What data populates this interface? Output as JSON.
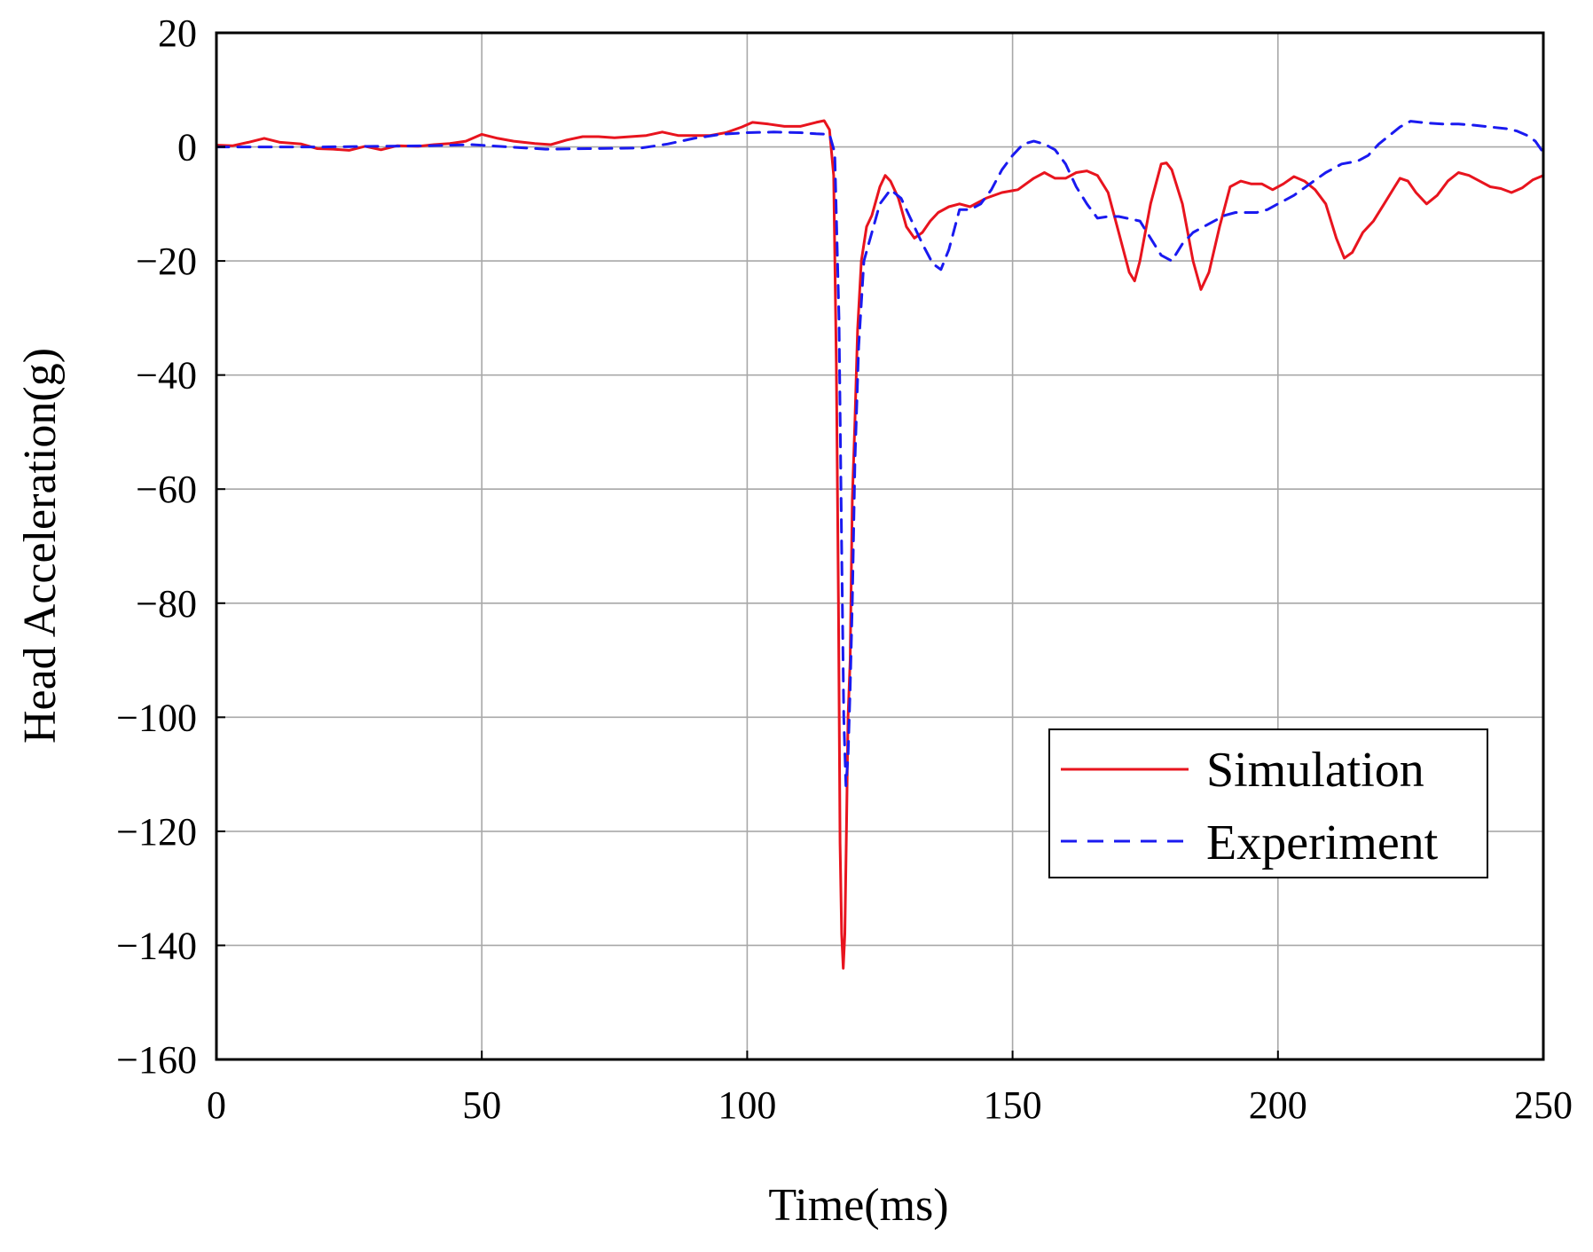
{
  "chart_data": {
    "type": "line",
    "title": "",
    "xlabel": "Time(ms)",
    "ylabel": "Head Acceleration(g)",
    "xlim": [
      0,
      250
    ],
    "ylim": [
      -160,
      20
    ],
    "xticks": [
      0,
      50,
      100,
      150,
      200,
      250
    ],
    "yticks": [
      20,
      0,
      -20,
      -40,
      -60,
      -80,
      -100,
      -120,
      -140,
      -160
    ],
    "xtick_labels": [
      "0",
      "50",
      "100",
      "150",
      "200",
      "250"
    ],
    "ytick_labels": [
      "20",
      "0",
      "−20",
      "−40",
      "−60",
      "−80",
      "−100",
      "−120",
      "−140",
      "−160"
    ],
    "grid": true,
    "legend_position": "lower-right",
    "series": [
      {
        "name": "Simulation",
        "color": "#e8141e",
        "style": "solid",
        "points": [
          [
            0,
            0.3
          ],
          [
            3,
            0.2
          ],
          [
            6,
            0.8
          ],
          [
            9,
            1.5
          ],
          [
            12,
            0.8
          ],
          [
            16,
            0.5
          ],
          [
            19,
            -0.3
          ],
          [
            22,
            -0.4
          ],
          [
            25,
            -0.6
          ],
          [
            28,
            0.1
          ],
          [
            31,
            -0.5
          ],
          [
            34,
            0.2
          ],
          [
            38,
            0.1
          ],
          [
            41,
            0.4
          ],
          [
            44,
            0.6
          ],
          [
            47,
            1
          ],
          [
            50,
            2.2
          ],
          [
            53,
            1.5
          ],
          [
            56,
            1
          ],
          [
            60,
            0.6
          ],
          [
            63,
            0.4
          ],
          [
            66,
            1.2
          ],
          [
            69,
            1.8
          ],
          [
            72,
            1.8
          ],
          [
            75,
            1.6
          ],
          [
            78,
            1.8
          ],
          [
            81,
            2
          ],
          [
            84,
            2.6
          ],
          [
            87,
            2
          ],
          [
            90,
            2
          ],
          [
            93,
            2
          ],
          [
            96,
            2.5
          ],
          [
            99,
            3.5
          ],
          [
            101,
            4.3
          ],
          [
            104,
            4
          ],
          [
            107,
            3.6
          ],
          [
            110,
            3.6
          ],
          [
            113,
            4.3
          ],
          [
            114.5,
            4.6
          ],
          [
            115.5,
            3
          ],
          [
            116.3,
            -5
          ],
          [
            116.8,
            -38
          ],
          [
            117.2,
            -80
          ],
          [
            117.5,
            -122
          ],
          [
            117.8,
            -138
          ],
          [
            118.1,
            -144
          ],
          [
            118.4,
            -138
          ],
          [
            118.7,
            -120
          ],
          [
            119,
            -100
          ],
          [
            119.4,
            -90
          ],
          [
            119.8,
            -62
          ],
          [
            120.3,
            -48
          ],
          [
            120.8,
            -32
          ],
          [
            121.5,
            -20
          ],
          [
            122.5,
            -14
          ],
          [
            123.5,
            -12
          ],
          [
            125,
            -7
          ],
          [
            126,
            -5
          ],
          [
            127,
            -6
          ],
          [
            128.5,
            -9
          ],
          [
            130,
            -14
          ],
          [
            131.5,
            -16
          ],
          [
            133,
            -15
          ],
          [
            134.5,
            -13
          ],
          [
            136,
            -11.5
          ],
          [
            138,
            -10.5
          ],
          [
            140,
            -10
          ],
          [
            142,
            -10.5
          ],
          [
            145,
            -9
          ],
          [
            148,
            -8
          ],
          [
            151,
            -7.5
          ],
          [
            154,
            -5.5
          ],
          [
            156,
            -4.5
          ],
          [
            158,
            -5.5
          ],
          [
            160,
            -5.5
          ],
          [
            162,
            -4.5
          ],
          [
            164,
            -4.2
          ],
          [
            166,
            -5
          ],
          [
            168,
            -8
          ],
          [
            170,
            -15
          ],
          [
            172,
            -22
          ],
          [
            173,
            -23.5
          ],
          [
            174,
            -20
          ],
          [
            176,
            -10
          ],
          [
            178,
            -3
          ],
          [
            179,
            -2.8
          ],
          [
            180,
            -4
          ],
          [
            182,
            -10
          ],
          [
            184,
            -20
          ],
          [
            185.5,
            -25
          ],
          [
            187,
            -22
          ],
          [
            189,
            -14
          ],
          [
            191,
            -7
          ],
          [
            193,
            -6
          ],
          [
            195,
            -6.5
          ],
          [
            197,
            -6.5
          ],
          [
            199,
            -7.5
          ],
          [
            201,
            -6.5
          ],
          [
            203,
            -5.2
          ],
          [
            205,
            -6
          ],
          [
            207,
            -7.5
          ],
          [
            209,
            -10
          ],
          [
            211,
            -16
          ],
          [
            212.5,
            -19.5
          ],
          [
            214,
            -18.5
          ],
          [
            216,
            -15
          ],
          [
            218,
            -13
          ],
          [
            220,
            -10
          ],
          [
            222,
            -7
          ],
          [
            223,
            -5.5
          ],
          [
            224.5,
            -6
          ],
          [
            226,
            -8
          ],
          [
            228,
            -10
          ],
          [
            230,
            -8.5
          ],
          [
            232,
            -6
          ],
          [
            234,
            -4.5
          ],
          [
            236,
            -5
          ],
          [
            238,
            -6
          ],
          [
            240,
            -7
          ],
          [
            242,
            -7.3
          ],
          [
            244,
            -8
          ],
          [
            246,
            -7.2
          ],
          [
            248,
            -5.8
          ],
          [
            250,
            -5
          ]
        ]
      },
      {
        "name": "Experiment",
        "color": "#1a1af0",
        "style": "dashed",
        "points": [
          [
            0,
            0
          ],
          [
            10,
            0
          ],
          [
            20,
            0
          ],
          [
            30,
            0.1
          ],
          [
            40,
            0.2
          ],
          [
            48,
            0.4
          ],
          [
            55,
            0
          ],
          [
            62,
            -0.4
          ],
          [
            70,
            -0.3
          ],
          [
            80,
            -0.2
          ],
          [
            85,
            0.5
          ],
          [
            90,
            1.5
          ],
          [
            95,
            2.2
          ],
          [
            100,
            2.5
          ],
          [
            105,
            2.6
          ],
          [
            110,
            2.5
          ],
          [
            113,
            2.3
          ],
          [
            115.5,
            2.2
          ],
          [
            116.5,
            -1
          ],
          [
            117.3,
            -30
          ],
          [
            117.8,
            -70
          ],
          [
            118.2,
            -100
          ],
          [
            118.6,
            -112
          ],
          [
            119,
            -107
          ],
          [
            119.4,
            -95
          ],
          [
            119.8,
            -80
          ],
          [
            120.3,
            -55
          ],
          [
            121,
            -35
          ],
          [
            122,
            -20
          ],
          [
            123.5,
            -15
          ],
          [
            125,
            -10
          ],
          [
            127,
            -7.5
          ],
          [
            129,
            -9
          ],
          [
            131,
            -13
          ],
          [
            133,
            -17
          ],
          [
            135,
            -20.5
          ],
          [
            136.5,
            -21.5
          ],
          [
            138,
            -18
          ],
          [
            140,
            -11
          ],
          [
            142,
            -11
          ],
          [
            144,
            -10
          ],
          [
            146,
            -7.5
          ],
          [
            148,
            -4
          ],
          [
            150,
            -1.5
          ],
          [
            152,
            0.5
          ],
          [
            154,
            1
          ],
          [
            156,
            0.5
          ],
          [
            158,
            -0.5
          ],
          [
            160,
            -3
          ],
          [
            162,
            -7
          ],
          [
            164,
            -10
          ],
          [
            166,
            -12.5
          ],
          [
            168,
            -12.2
          ],
          [
            170,
            -12.2
          ],
          [
            172,
            -12.6
          ],
          [
            174,
            -13
          ],
          [
            176,
            -16
          ],
          [
            178,
            -19
          ],
          [
            180,
            -20
          ],
          [
            182,
            -17
          ],
          [
            184,
            -15
          ],
          [
            186,
            -14
          ],
          [
            188,
            -13
          ],
          [
            190,
            -12
          ],
          [
            192,
            -11.5
          ],
          [
            194,
            -11.5
          ],
          [
            196,
            -11.5
          ],
          [
            198,
            -11
          ],
          [
            200,
            -10
          ],
          [
            203,
            -8.5
          ],
          [
            206,
            -6.5
          ],
          [
            209,
            -4.5
          ],
          [
            212,
            -3
          ],
          [
            215,
            -2.5
          ],
          [
            217,
            -1.5
          ],
          [
            219,
            0.5
          ],
          [
            221,
            2
          ],
          [
            223,
            3.5
          ],
          [
            225,
            4.5
          ],
          [
            228,
            4.2
          ],
          [
            231,
            4
          ],
          [
            234,
            4
          ],
          [
            237,
            3.8
          ],
          [
            240,
            3.5
          ],
          [
            243,
            3.2
          ],
          [
            245,
            2.8
          ],
          [
            247,
            2
          ],
          [
            248.5,
            1
          ],
          [
            250,
            -1
          ]
        ]
      }
    ]
  }
}
